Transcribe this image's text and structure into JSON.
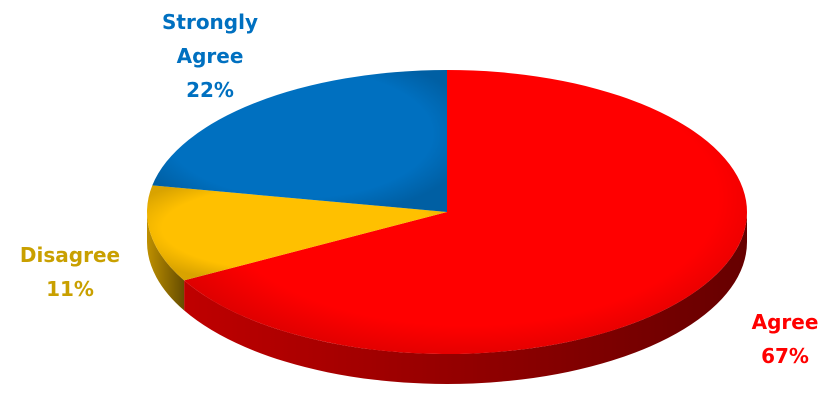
{
  "chart_data": {
    "type": "pie",
    "categories": [
      "Agree",
      "Disagree",
      "Strongly Agree"
    ],
    "values": [
      67,
      11,
      22
    ],
    "value_labels": [
      "67%",
      "11%",
      "22%"
    ],
    "colors": [
      "#ff0000",
      "#ffc000",
      "#0070c0"
    ],
    "label_colors": [
      "#ff0000",
      "#c9a000",
      "#0070c0"
    ],
    "start_angle": 90,
    "direction": "clockwise"
  }
}
